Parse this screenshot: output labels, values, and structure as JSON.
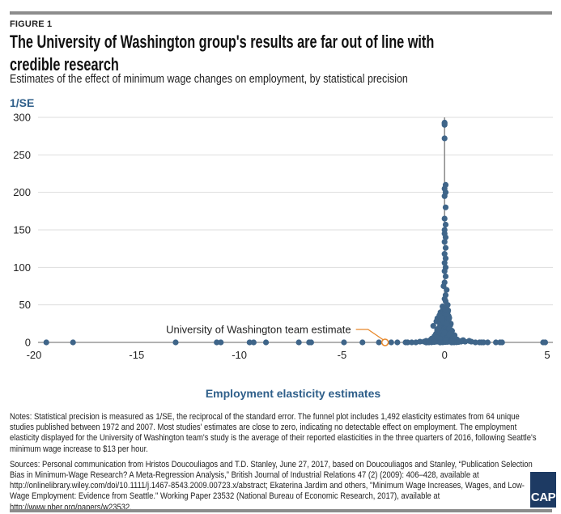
{
  "figure_label": "FIGURE 1",
  "title": "The University of Washington group's results are far out of line with credible research",
  "subtitle": "Estimates of the effect of minimum wage changes on employment, by statistical precision",
  "chart_data": {
    "type": "scatter",
    "title": "",
    "xlabel": "Employment elasticity estimates",
    "ylabel": "1/SE",
    "xlim": [
      -20,
      5
    ],
    "ylim": [
      0,
      300
    ],
    "x_ticks": [
      "-20",
      "-15",
      "-10",
      "-5",
      "0",
      "5"
    ],
    "y_ticks": [
      "0",
      "50",
      "100",
      "150",
      "200",
      "250",
      "300"
    ],
    "grid": "horizontal",
    "reference_line_x": 0,
    "point_color": "#3f6589",
    "highlight_color": "#e8882a",
    "points": [
      [
        -19.4,
        0
      ],
      [
        -18.1,
        0
      ],
      [
        -13.1,
        0
      ],
      [
        -11.1,
        0
      ],
      [
        -10.9,
        0
      ],
      [
        -9.5,
        0
      ],
      [
        -9.3,
        0
      ],
      [
        -8.7,
        0
      ],
      [
        -7.1,
        0
      ],
      [
        -6.6,
        0
      ],
      [
        -6.5,
        0
      ],
      [
        -4.9,
        0
      ],
      [
        -4.0,
        0
      ],
      [
        -3.2,
        0
      ],
      [
        -2.6,
        0
      ],
      [
        -2.3,
        0
      ],
      [
        -1.9,
        0
      ],
      [
        -1.8,
        0
      ],
      [
        -1.6,
        0
      ],
      [
        -1.4,
        0
      ],
      [
        -1.2,
        1
      ],
      [
        -1.0,
        1
      ],
      [
        -0.9,
        2
      ],
      [
        -0.8,
        1
      ],
      [
        -0.7,
        3
      ],
      [
        -0.6,
        2
      ],
      [
        1.5,
        0
      ],
      [
        1.7,
        0
      ],
      [
        1.8,
        0
      ],
      [
        1.9,
        0
      ],
      [
        2.1,
        0
      ],
      [
        2.5,
        0
      ],
      [
        2.7,
        0
      ],
      [
        2.8,
        0
      ],
      [
        4.8,
        0
      ],
      [
        4.9,
        0
      ],
      [
        -0.6,
        5
      ],
      [
        -0.5,
        8
      ],
      [
        -0.45,
        4
      ],
      [
        -0.4,
        12
      ],
      [
        -0.35,
        6
      ],
      [
        -0.3,
        15
      ],
      [
        -0.3,
        9
      ],
      [
        -0.25,
        20
      ],
      [
        -0.2,
        25
      ],
      [
        -0.2,
        14
      ],
      [
        -0.15,
        30
      ],
      [
        -0.15,
        18
      ],
      [
        -0.1,
        35
      ],
      [
        -0.1,
        22
      ],
      [
        -0.1,
        10
      ],
      [
        -0.05,
        40
      ],
      [
        -0.05,
        28
      ],
      [
        -0.05,
        5
      ],
      [
        0,
        3
      ],
      [
        0,
        12
      ],
      [
        0,
        20
      ],
      [
        0,
        33
      ],
      [
        0,
        45
      ],
      [
        0.05,
        38
      ],
      [
        0.05,
        26
      ],
      [
        0.05,
        8
      ],
      [
        0.1,
        30
      ],
      [
        0.1,
        16
      ],
      [
        0.1,
        4
      ],
      [
        0.15,
        22
      ],
      [
        0.15,
        10
      ],
      [
        0.2,
        18
      ],
      [
        0.2,
        6
      ],
      [
        0.25,
        12
      ],
      [
        0.3,
        8
      ],
      [
        0.3,
        3
      ],
      [
        0.35,
        5
      ],
      [
        0.4,
        7
      ],
      [
        0.45,
        2
      ],
      [
        0.5,
        4
      ],
      [
        0.6,
        3
      ],
      [
        0.7,
        2
      ],
      [
        0.8,
        1
      ],
      [
        0.9,
        3
      ],
      [
        1.0,
        1
      ],
      [
        1.2,
        2
      ],
      [
        1.3,
        1
      ],
      [
        -0.55,
        22
      ],
      [
        -0.35,
        32
      ],
      [
        -0.2,
        40
      ],
      [
        -0.1,
        48
      ],
      [
        0.1,
        44
      ],
      [
        0.2,
        35
      ],
      [
        0.3,
        25
      ],
      [
        -0.4,
        28
      ],
      [
        -0.25,
        36
      ],
      [
        0.15,
        50
      ],
      [
        0.05,
        55
      ],
      [
        0,
        58
      ],
      [
        0.05,
        63
      ],
      [
        0.1,
        70
      ],
      [
        -0.05,
        75
      ],
      [
        0,
        80
      ],
      [
        0.05,
        88
      ],
      [
        0,
        95
      ],
      [
        0.05,
        100
      ],
      [
        0,
        106
      ],
      [
        0.05,
        112
      ],
      [
        0,
        118
      ],
      [
        0.05,
        126
      ],
      [
        0,
        134
      ],
      [
        0.05,
        140
      ],
      [
        0,
        145
      ],
      [
        0,
        150
      ],
      [
        0.05,
        157
      ],
      [
        0,
        165
      ],
      [
        0.05,
        180
      ],
      [
        0,
        195
      ],
      [
        0.05,
        200
      ],
      [
        0,
        205
      ],
      [
        0.05,
        210
      ],
      [
        0,
        272
      ],
      [
        0,
        290
      ],
      [
        0,
        292
      ],
      [
        0,
        293
      ]
    ],
    "highlight_point": {
      "label": "University of Washington team estimate",
      "x": -2.9,
      "y": 0
    }
  },
  "notes": "Notes: Statistical precision is measured as 1/SE, the reciprocal of the standard error. The funnel plot includes 1,492 elasticity estimates from 64 unique studies published between 1972 and 2007. Most studies' estimates are close to zero, indicating no detectable effect on employment. The employment elasticity displayed for the University of Washington team's study is the average of their reported elasticities in the three quarters of 2016, following Seattle's minimum wage increase to $13 per hour.",
  "sources": "Sources: Personal communication from Hristos Doucouliagos and T.D. Stanley, June 27, 2017, based on Doucouliagos and Stanley, “Publication Selection Bias in Minimum-Wage Research? A Meta-Regression Analysis,” British Journal of Industrial Relations 47 (2) (2009): 406–428, available at http://onlinelibrary.wiley.com/doi/10.1111/j.1467-8543.2009.00723.x/abstract; Ekaterina Jardim and others, \"Minimum Wage Increases, Wages, and Low-Wage Employment: Evidence from Seattle.\" Working Paper 23532 (National Bureau of Economic Research, 2017), available at http://www.nber.org/papers/w23532.",
  "logo": "CAP"
}
